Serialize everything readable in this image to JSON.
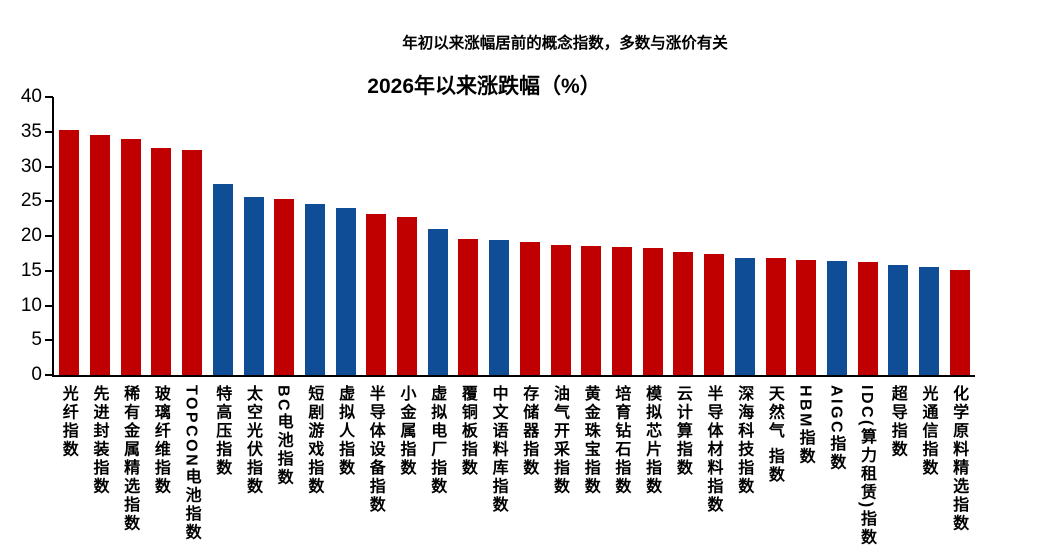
{
  "chart": {
    "caption": "年初以来涨幅居前的概念指数，多数与涨价有关",
    "title": "2026年以来涨跌幅（%）"
  },
  "colors": {
    "bar_red": "#C00000",
    "bar_blue": "#0F4D96",
    "axis": "#000000",
    "background": "#FFFFFF",
    "text": "#000000"
  },
  "chart_data": {
    "type": "bar",
    "caption": "年初以来涨幅居前的概念指数，多数与涨价有关",
    "title": "2026年以来涨跌幅（%）",
    "xlabel": "",
    "ylabel": "",
    "ylim": [
      0,
      40
    ],
    "yticks": [
      0,
      5,
      10,
      15,
      20,
      25,
      30,
      35,
      40
    ],
    "grid": false,
    "legend": false,
    "categories": [
      "光纤指数",
      "先进封装指数",
      "稀有金属精选指数",
      "玻璃纤维指数",
      "TOPCON电池指数",
      "特高压指数",
      "太空光伏指数",
      "BC电池指数",
      "短剧游戏指数",
      "虚拟人指数",
      "半导体设备指数",
      "小金属指数",
      "虚拟电厂指数",
      "覆铜板指数",
      "中文语料库指数",
      "存储器指数",
      "油气开采指数",
      "黄金珠宝指数",
      "培育钻石指数",
      "模拟芯片指数",
      "云计算指数",
      "半导体材料指数",
      "深海科技指数",
      "天然气 指数",
      "HBM指数",
      "AIGC指数",
      "IDC(算力租赁)指数",
      "超导指数",
      "光通信指数",
      "化学原料精选指数"
    ],
    "values": [
      35.2,
      34.6,
      34.0,
      32.6,
      32.4,
      27.5,
      25.6,
      25.3,
      24.6,
      24.1,
      23.1,
      22.7,
      21.0,
      19.5,
      19.4,
      19.2,
      18.7,
      18.5,
      18.4,
      18.3,
      17.7,
      17.4,
      16.9,
      16.8,
      16.6,
      16.4,
      16.3,
      15.8,
      15.6,
      15.1
    ],
    "bar_colors": [
      "#C00000",
      "#C00000",
      "#C00000",
      "#C00000",
      "#C00000",
      "#0F4D96",
      "#0F4D96",
      "#C00000",
      "#0F4D96",
      "#0F4D96",
      "#C00000",
      "#C00000",
      "#0F4D96",
      "#C00000",
      "#0F4D96",
      "#C00000",
      "#C00000",
      "#C00000",
      "#C00000",
      "#C00000",
      "#C00000",
      "#C00000",
      "#0F4D96",
      "#C00000",
      "#C00000",
      "#0F4D96",
      "#C00000",
      "#0F4D96",
      "#0F4D96",
      "#C00000"
    ]
  }
}
